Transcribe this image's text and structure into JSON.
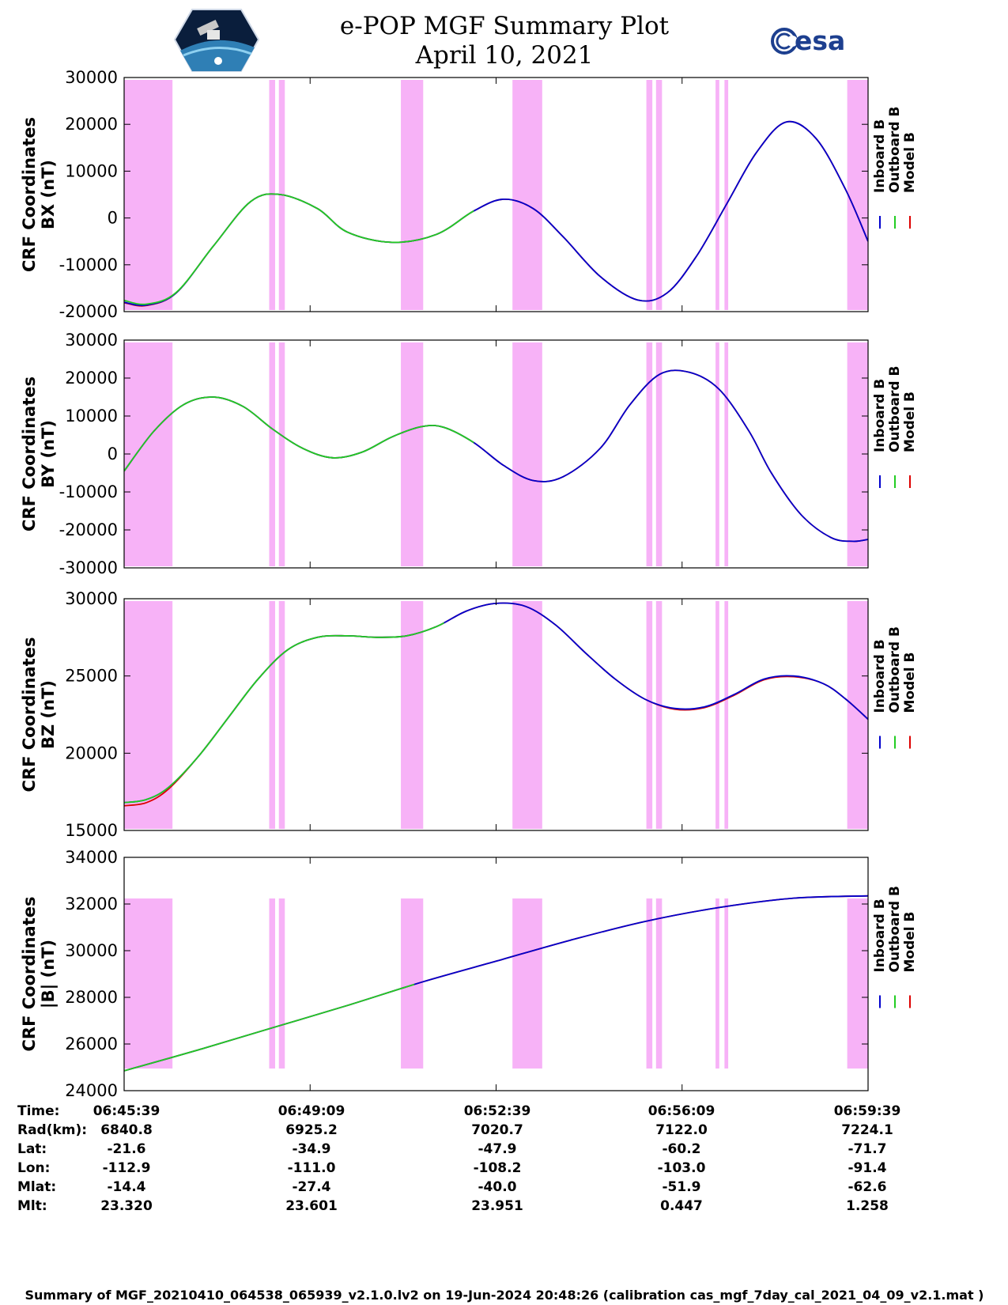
{
  "header": {
    "title_line1": "e-POP MGF Summary Plot",
    "title_line2": "April 10, 2021",
    "left_logo": "cassiope-mission-logo",
    "right_logo_text": "esa"
  },
  "colors": {
    "inboard": "#0000cc",
    "outboard": "#22cc22",
    "model": "#dd0000",
    "shading": "#f7b2f7"
  },
  "legend": [
    "Inboard B",
    "Outboard B",
    "Model B"
  ],
  "shaded_intervals": [
    [
      0,
      0.065
    ],
    [
      0.195,
      0.203
    ],
    [
      0.208,
      0.216
    ],
    [
      0.372,
      0.402
    ],
    [
      0.522,
      0.562
    ],
    [
      0.702,
      0.71
    ],
    [
      0.715,
      0.723
    ],
    [
      0.795,
      0.8
    ],
    [
      0.807,
      0.812
    ],
    [
      0.972,
      1.0
    ]
  ],
  "green_until": [
    0.47,
    0.47,
    0.43,
    0.39
  ],
  "chart_data": [
    {
      "type": "line",
      "ylabel_line1": "CRF Coordinates",
      "ylabel_line2": "BX (nT)",
      "ylim": [
        -20000,
        30000
      ],
      "yticks": [
        -20000,
        -10000,
        0,
        10000,
        20000,
        30000
      ],
      "ytick_labels": [
        "-20000",
        "-10000",
        "0",
        "10000",
        "20000",
        "30000"
      ],
      "x": [
        0,
        0.03,
        0.07,
        0.12,
        0.17,
        0.21,
        0.26,
        0.3,
        0.36,
        0.42,
        0.47,
        0.51,
        0.55,
        0.59,
        0.64,
        0.69,
        0.73,
        0.77,
        0.81,
        0.85,
        0.89,
        0.93,
        0.97,
        1.0
      ],
      "series": [
        {
          "name": "Inboard B",
          "values": [
            -18000,
            -18600,
            -16000,
            -6000,
            3500,
            5000,
            2000,
            -3000,
            -5200,
            -3500,
            1500,
            4000,
            2000,
            -4000,
            -12500,
            -17500,
            -16000,
            -8000,
            3000,
            14000,
            20500,
            17000,
            6000,
            -5000
          ]
        },
        {
          "name": "Outboard B",
          "values": [
            -17600,
            -18400,
            -15900,
            -6000,
            3500,
            5000,
            2000,
            -3000,
            -5200,
            -3500,
            1500,
            4000,
            2000,
            -4000,
            -12500,
            -17500,
            -16000,
            -8000,
            3000,
            14000,
            20500,
            17000,
            6000,
            -5000
          ]
        },
        {
          "name": "Model B",
          "values": [
            -18100,
            -18700,
            -16000,
            -6000,
            3500,
            5000,
            2000,
            -3000,
            -5200,
            -3500,
            1500,
            4000,
            2000,
            -4000,
            -12500,
            -17500,
            -16000,
            -8000,
            3000,
            14000,
            20500,
            17000,
            6000,
            -5000
          ]
        }
      ]
    },
    {
      "type": "line",
      "ylabel_line1": "CRF Coordinates",
      "ylabel_line2": "BY (nT)",
      "ylim": [
        -30000,
        30000
      ],
      "yticks": [
        -30000,
        -20000,
        -10000,
        0,
        10000,
        20000,
        30000
      ],
      "ytick_labels": [
        "-30000",
        "-20000",
        "-10000",
        "0",
        "10000",
        "20000",
        "30000"
      ],
      "x": [
        0,
        0.04,
        0.08,
        0.12,
        0.16,
        0.2,
        0.24,
        0.28,
        0.32,
        0.36,
        0.4,
        0.43,
        0.47,
        0.51,
        0.55,
        0.59,
        0.64,
        0.68,
        0.72,
        0.76,
        0.8,
        0.84,
        0.87,
        0.91,
        0.95,
        0.98,
        1.0
      ],
      "series": [
        {
          "name": "Inboard B",
          "values": [
            -4500,
            6000,
            13000,
            15000,
            12500,
            6500,
            1500,
            -1000,
            500,
            4500,
            7200,
            7000,
            3000,
            -3000,
            -7000,
            -6000,
            1500,
            13000,
            21000,
            21500,
            17000,
            6000,
            -5000,
            -16000,
            -22000,
            -23000,
            -22500
          ]
        },
        {
          "name": "Outboard B",
          "values": [
            -4500,
            6000,
            13000,
            15000,
            12500,
            6500,
            1500,
            -1000,
            500,
            4500,
            7200,
            7000,
            3000,
            -3000,
            -7000,
            -6000,
            1500,
            13000,
            21000,
            21500,
            17000,
            6000,
            -5000,
            -16000,
            -22000,
            -23000,
            -22500
          ]
        },
        {
          "name": "Model B",
          "values": [
            -4500,
            6000,
            13000,
            15000,
            12500,
            6500,
            1500,
            -1000,
            500,
            4500,
            7200,
            7000,
            3000,
            -3000,
            -7000,
            -6000,
            1500,
            13000,
            21000,
            21500,
            17000,
            6000,
            -5000,
            -16000,
            -22000,
            -23000,
            -22500
          ]
        }
      ]
    },
    {
      "type": "line",
      "ylabel_line1": "CRF Coordinates",
      "ylabel_line2": "BZ (nT)",
      "ylim": [
        15000,
        30000
      ],
      "yticks": [
        15000,
        20000,
        25000,
        30000
      ],
      "ytick_labels": [
        "15000",
        "20000",
        "25000",
        "30000"
      ],
      "x": [
        0,
        0.03,
        0.06,
        0.1,
        0.14,
        0.18,
        0.22,
        0.26,
        0.3,
        0.34,
        0.38,
        0.42,
        0.46,
        0.5,
        0.54,
        0.58,
        0.62,
        0.66,
        0.7,
        0.74,
        0.78,
        0.82,
        0.86,
        0.9,
        0.94,
        0.97,
        1.0
      ],
      "series": [
        {
          "name": "Inboard B",
          "values": [
            16800,
            17000,
            17800,
            19800,
            22300,
            24800,
            26700,
            27500,
            27600,
            27500,
            27600,
            28200,
            29200,
            29700,
            29500,
            28300,
            26500,
            24800,
            23500,
            22900,
            23000,
            23800,
            24800,
            25000,
            24500,
            23500,
            22200
          ]
        },
        {
          "name": "Outboard B",
          "values": [
            16800,
            17000,
            17800,
            19800,
            22300,
            24800,
            26700,
            27500,
            27600,
            27500,
            27600,
            28200,
            29200,
            29700,
            29500,
            28300,
            26500,
            24800,
            23500,
            22900,
            23000,
            23800,
            24800,
            25000,
            24500,
            23500,
            22200
          ]
        },
        {
          "name": "Model B",
          "values": [
            16600,
            16800,
            17700,
            19800,
            22300,
            24800,
            26700,
            27500,
            27600,
            27500,
            27600,
            28200,
            29200,
            29700,
            29500,
            28300,
            26500,
            24800,
            23500,
            22850,
            22950,
            23750,
            24750,
            24950,
            24500,
            23500,
            22200
          ]
        }
      ]
    },
    {
      "type": "line",
      "ylabel_line1": "CRF Coordinates",
      "ylabel_line2": "|B| (nT)",
      "ylim": [
        24000,
        34000
      ],
      "yticks": [
        24000,
        26000,
        28000,
        30000,
        32000,
        34000
      ],
      "ytick_labels": [
        "24000",
        "26000",
        "28000",
        "30000",
        "32000",
        "34000"
      ],
      "x": [
        0,
        0.1,
        0.2,
        0.3,
        0.4,
        0.5,
        0.6,
        0.7,
        0.8,
        0.9,
        1.0
      ],
      "series": [
        {
          "name": "Inboard B",
          "values": [
            24850,
            25750,
            26700,
            27650,
            28650,
            29550,
            30450,
            31250,
            31850,
            32250,
            32350
          ]
        },
        {
          "name": "Outboard B",
          "values": [
            24850,
            25750,
            26700,
            27650,
            28650,
            29550,
            30450,
            31250,
            31850,
            32250,
            32350
          ]
        },
        {
          "name": "Model B",
          "values": [
            24850,
            25750,
            26700,
            27650,
            28650,
            29550,
            30450,
            31250,
            31850,
            32250,
            32350
          ]
        }
      ]
    }
  ],
  "orbit_info": {
    "row_labels": [
      "Time:",
      "Rad(km):",
      "Lat:",
      "Lon:",
      "Mlat:",
      "Mlt:"
    ],
    "columns": [
      [
        "06:45:39",
        "6840.8",
        "-21.6",
        "-112.9",
        "-14.4",
        "23.320"
      ],
      [
        "06:49:09",
        "6925.2",
        "-34.9",
        "-111.0",
        "-27.4",
        "23.601"
      ],
      [
        "06:52:39",
        "7020.7",
        "-47.9",
        "-108.2",
        "-40.0",
        "23.951"
      ],
      [
        "06:56:09",
        "7122.0",
        "-60.2",
        "-103.0",
        "-51.9",
        "0.447"
      ],
      [
        "06:59:39",
        "7224.1",
        "-71.7",
        "-91.4",
        "-62.6",
        "1.258"
      ]
    ]
  },
  "footer": "Summary of MGF_20210410_064538_065939_v2.1.0.lv2 on 19-Jun-2024 20:48:26 (calibration cas_mgf_7day_cal_2021_04_09_v2.1.mat )"
}
